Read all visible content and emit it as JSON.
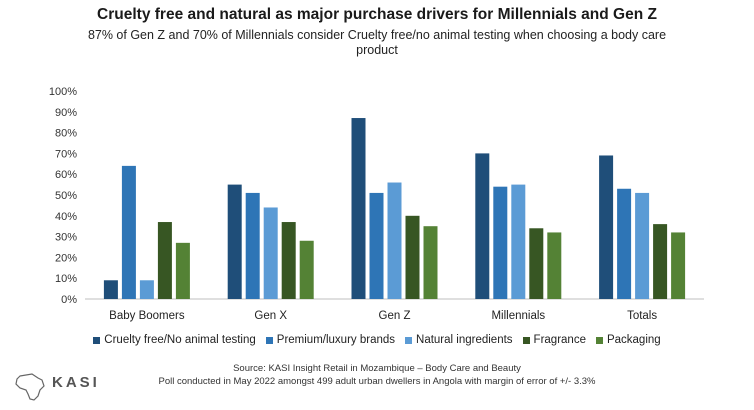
{
  "chart_data": {
    "type": "bar",
    "title": "Cruelty free and natural as major purchase drivers for Millennials and Gen Z",
    "subtitle": "87% of Gen Z and 70% of Millennials consider Cruelty free/no animal testing when choosing a body care product",
    "categories": [
      "Baby Boomers",
      "Gen X",
      "Gen Z",
      "Millennials",
      "Totals"
    ],
    "series": [
      {
        "name": "Cruelty free/No animal testing",
        "color": "#1f4e79",
        "values": [
          9,
          55,
          87,
          70,
          69
        ]
      },
      {
        "name": "Premium/luxury brands",
        "color": "#2e75b6",
        "values": [
          64,
          51,
          51,
          54,
          53
        ]
      },
      {
        "name": "Natural ingredients",
        "color": "#5b9bd5",
        "values": [
          9,
          44,
          56,
          55,
          51
        ]
      },
      {
        "name": "Fragrance",
        "color": "#375623",
        "values": [
          37,
          37,
          40,
          34,
          36
        ]
      },
      {
        "name": "Packaging",
        "color": "#548235",
        "values": [
          27,
          28,
          35,
          32,
          32
        ]
      }
    ],
    "ylim": [
      0,
      100
    ],
    "yticks": [
      "0%",
      "10%",
      "20%",
      "30%",
      "40%",
      "50%",
      "60%",
      "70%",
      "80%",
      "90%",
      "100%"
    ],
    "grid": false,
    "legend": "bottom"
  },
  "footer": {
    "source": "Source: KASI Insight Retail in Mozambique – Body Care and Beauty",
    "poll": "Poll conducted in May 2022 amongst 499 adult urban dwellers in Angola with margin of error of +/- 3.3%"
  },
  "logo": {
    "name": "KASI"
  }
}
